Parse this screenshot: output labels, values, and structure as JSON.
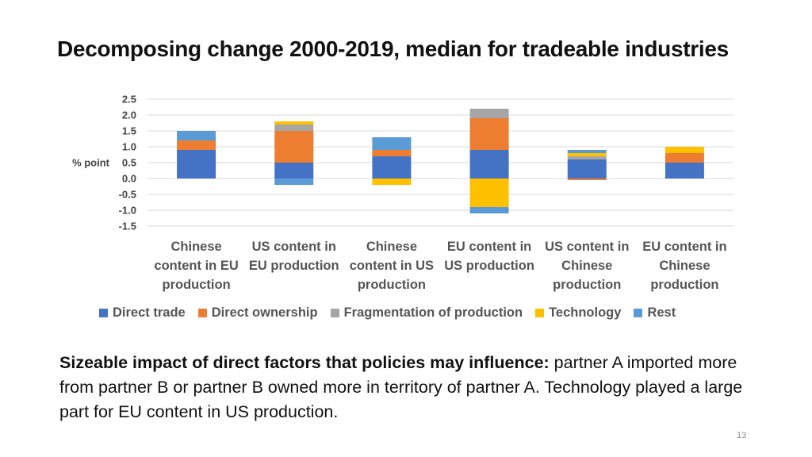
{
  "title": "Decomposing change 2000-2019, median for tradeable industries",
  "colors": {
    "direct_trade": "#4472C4",
    "direct_ownership": "#ED7D31",
    "fragmentation": "#A5A5A5",
    "technology": "#FFC000",
    "rest": "#5B9BD5",
    "grid": "#d9d9d9"
  },
  "chart_data": {
    "type": "bar",
    "stacked": true,
    "ylabel": "% point",
    "ylim": [
      -1.5,
      2.5
    ],
    "yticks": [
      "2.5",
      "2.0",
      "1.5",
      "1.0",
      "0.5",
      "0.0",
      "-0.5",
      "-1.0",
      "-1.5"
    ],
    "ytick_values": [
      2.5,
      2.0,
      1.5,
      1.0,
      0.5,
      0.0,
      -0.5,
      -1.0,
      -1.5
    ],
    "categories": [
      [
        "Chinese",
        "content in EU",
        "production"
      ],
      [
        "US content in",
        "EU production"
      ],
      [
        "Chinese",
        "content in US",
        "production"
      ],
      [
        "EU content in",
        "US production"
      ],
      [
        "US content in",
        "Chinese",
        "production"
      ],
      [
        "EU content in",
        "Chinese",
        "production"
      ]
    ],
    "series": [
      {
        "name": "Direct trade",
        "color_key": "direct_trade",
        "values": [
          0.9,
          0.5,
          0.7,
          0.9,
          0.6,
          0.5
        ]
      },
      {
        "name": "Direct ownership",
        "color_key": "direct_ownership",
        "values": [
          0.3,
          1.0,
          0.2,
          1.0,
          -0.05,
          0.3
        ]
      },
      {
        "name": "Fragmentation of production",
        "color_key": "fragmentation",
        "values": [
          0.0,
          0.2,
          0.0,
          0.3,
          0.1,
          0.0
        ]
      },
      {
        "name": "Technology",
        "color_key": "technology",
        "values": [
          0.0,
          0.1,
          -0.2,
          -0.9,
          0.1,
          0.2
        ]
      },
      {
        "name": "Rest",
        "color_key": "rest",
        "values": [
          0.3,
          -0.2,
          0.4,
          -0.2,
          0.1,
          0.0
        ]
      }
    ]
  },
  "note": {
    "bold": "Sizeable impact of direct factors that policies may influence:",
    "text": " partner A imported more from partner B or partner B owned more in territory of partner A. Technology played a large part for EU content in US production."
  },
  "page_number": "13"
}
